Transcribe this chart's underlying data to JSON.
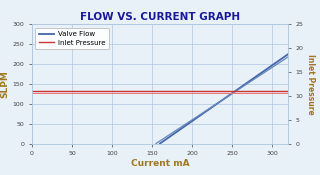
{
  "title": "FLOW VS. CURRENT GRAPH",
  "xlabel": "Current mA",
  "ylabel_left": "SLPM",
  "ylabel_right": "Inlet Pressure",
  "xlim": [
    0,
    320
  ],
  "ylim_left": [
    0,
    300
  ],
  "ylim_right": [
    0,
    25
  ],
  "yticks_left": [
    0,
    50,
    100,
    150,
    200,
    250,
    300
  ],
  "yticks_right": [
    0,
    5,
    10,
    15,
    20,
    25
  ],
  "background_color": "#e8f0f8",
  "plot_bg_color": "#e8f0f8",
  "grid_color": "#b0c8e0",
  "title_color": "#1a1a99",
  "label_color": "#a07820",
  "axis_color": "#444444",
  "tick_color": "#444444",
  "valve_flow_color": "#4466aa",
  "valve_flow_color2": "#6688bb",
  "inlet_pressure_color": "#cc3333",
  "inlet_pressure_color2": "#ee7777",
  "legend_label_flow": "Valve Flow",
  "legend_label_pressure": "Inlet Pressure",
  "valve_flow_start_x": 160,
  "valve_flow_end_x": 320,
  "valve_flow_start_y": 0,
  "valve_flow_end_y": 225,
  "valve_flow2_start_x": 155,
  "valve_flow2_end_x": 320,
  "valve_flow2_start_y": 0,
  "valve_flow2_end_y": 218,
  "inlet_pressure_y": 133,
  "inlet_pressure2_y": 128,
  "inlet_pressure_x_start": 0,
  "inlet_pressure_x_end": 320
}
